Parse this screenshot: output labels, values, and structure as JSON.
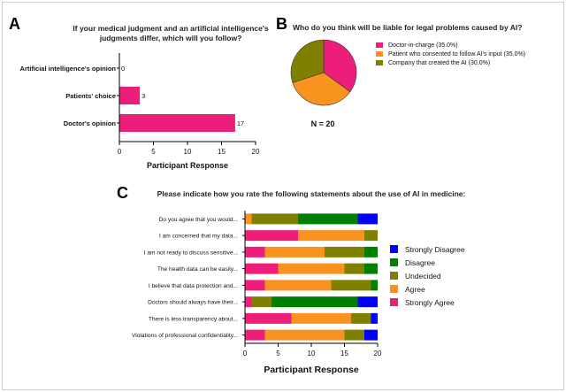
{
  "panels": {
    "a": {
      "letter": "A"
    },
    "b": {
      "letter": "B"
    },
    "c": {
      "letter": "C"
    }
  },
  "chart_data": [
    {
      "id": "A",
      "type": "bar",
      "orientation": "horizontal",
      "title_lines": [
        "If your medical judgment and an artificial intelligence's",
        "judgments differ, which will you follow?"
      ],
      "categories": [
        "Artificial intelligence's opinion",
        "Patients' choice",
        "Doctor's opinion"
      ],
      "values": [
        0,
        3,
        17
      ],
      "value_labels": [
        "0",
        "3",
        "17"
      ],
      "xlabel": "Participant Response",
      "xlim": [
        0,
        20
      ],
      "xticks": [
        "0",
        "5",
        "10",
        "15",
        "20"
      ],
      "color": "#ec1e79"
    },
    {
      "id": "B",
      "type": "pie",
      "title": "Who do you think will be liable for legal problems caused by AI?",
      "slices": [
        {
          "label": "Doctor-in-charge (35.0%)",
          "value": 35.0,
          "color": "#ec1e79"
        },
        {
          "label": "Patient who consented to follow AI's input (35.0%)",
          "value": 35.0,
          "color": "#f7931e"
        },
        {
          "label": "Company that created the AI (30.0%)",
          "value": 30.0,
          "color": "#808000"
        }
      ],
      "note": "N = 20"
    },
    {
      "id": "C",
      "type": "bar",
      "orientation": "horizontal",
      "stacked": true,
      "title": "Please indicate how you rate the following statements about the use of AI in medicine:",
      "categories": [
        "Do you agree that you would...",
        "I am concerned that my data...",
        "I am not ready to discuss sensitive...",
        "The health data can be easily...",
        "I believe that data protection and...",
        "Doctors should always have their...",
        "There is less transparency about...",
        "Violations of professional confidentiality..."
      ],
      "series": [
        {
          "name": "Strongly Agree",
          "color": "#ec1e79",
          "values": [
            0,
            8,
            3,
            5,
            3,
            1,
            7,
            3
          ]
        },
        {
          "name": "Agree",
          "color": "#f7931e",
          "values": [
            1,
            10,
            9,
            10,
            10,
            0,
            9,
            12
          ]
        },
        {
          "name": "Undecided",
          "color": "#808000",
          "values": [
            7,
            2,
            6,
            3,
            6,
            3,
            3,
            3
          ]
        },
        {
          "name": "Disagree",
          "color": "#008000",
          "values": [
            9,
            0,
            2,
            2,
            1,
            13,
            0,
            0
          ]
        },
        {
          "name": "Strongly Disagree",
          "color": "#0000ff",
          "values": [
            3,
            0,
            0,
            0,
            0,
            3,
            1,
            2
          ]
        }
      ],
      "legend_order": [
        "Strongly Disagree",
        "Disagree",
        "Undecided",
        "Agree",
        "Strongly Agree"
      ],
      "xlabel": "Participant Response",
      "xlim": [
        0,
        20
      ],
      "xticks": [
        "0",
        "5",
        "10",
        "15",
        "20"
      ]
    }
  ]
}
